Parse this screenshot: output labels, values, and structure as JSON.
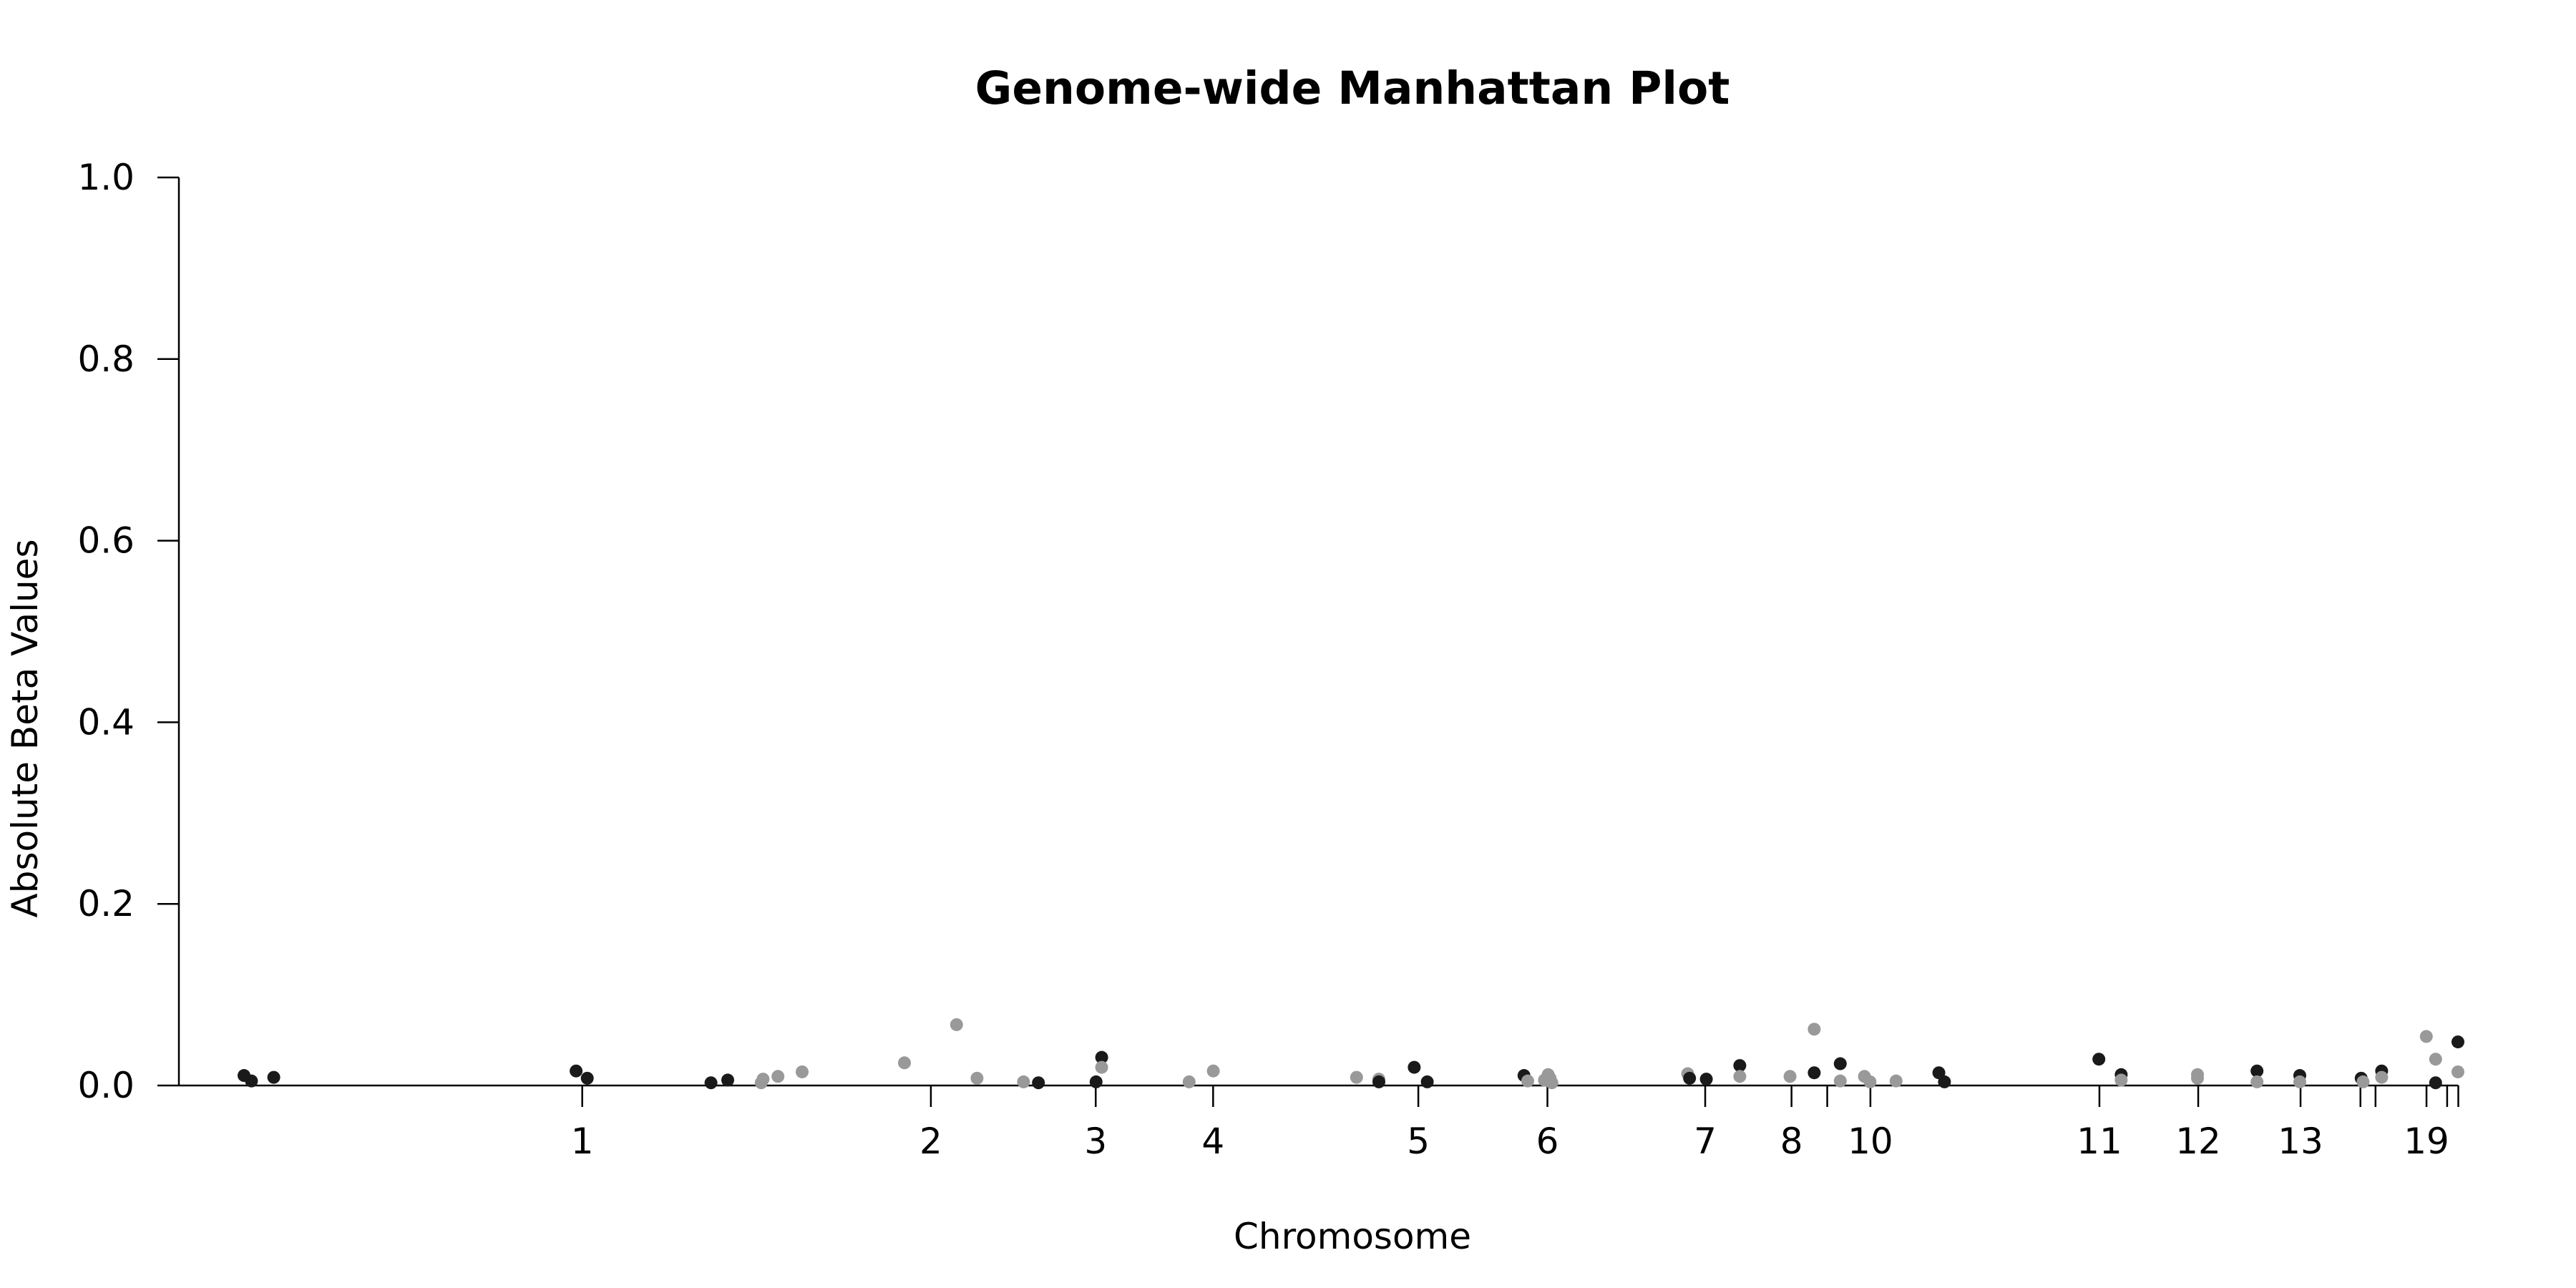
{
  "chart_data": {
    "type": "scatter",
    "title": "Genome-wide Manhattan Plot",
    "xlabel": "Chromosome",
    "ylabel": "Absolute Beta Values",
    "ylim": [
      0,
      1.0
    ],
    "grid": false,
    "y_ticks": [
      "0.0",
      "0.2",
      "0.4",
      "0.6",
      "0.8",
      "1.0"
    ],
    "x_ticks": [
      {
        "label": "1",
        "pos": 0.2168
      },
      {
        "label": "2",
        "pos": 0.4042
      },
      {
        "label": "3",
        "pos": 0.4928
      },
      {
        "label": "4",
        "pos": 0.5559
      },
      {
        "label": "5",
        "pos": 0.6662
      },
      {
        "label": "6",
        "pos": 0.7356
      },
      {
        "label": "7",
        "pos": 0.8204
      },
      {
        "label": "8",
        "pos": 0.8668
      },
      {
        "label": "",
        "pos": 0.886
      },
      {
        "label": "10",
        "pos": 0.9092
      },
      {
        "label": "11",
        "pos": 1.0323
      },
      {
        "label": "12",
        "pos": 1.0854
      },
      {
        "label": "13",
        "pos": 1.1404
      },
      {
        "label": "",
        "pos": 1.1726
      },
      {
        "label": "",
        "pos": 1.1807
      },
      {
        "label": "19",
        "pos": 1.2081
      },
      {
        "label": "",
        "pos": 1.2192
      },
      {
        "label": "",
        "pos": 1.2252
      }
    ],
    "colors": {
      "dark": "#1a1a1a",
      "light": "#999999"
    },
    "points": [
      {
        "x": 0.035,
        "y": 0.011,
        "c": "dark"
      },
      {
        "x": 0.039,
        "y": 0.005,
        "c": "dark"
      },
      {
        "x": 0.051,
        "y": 0.009,
        "c": "dark"
      },
      {
        "x": 0.2135,
        "y": 0.016,
        "c": "dark"
      },
      {
        "x": 0.2195,
        "y": 0.008,
        "c": "dark"
      },
      {
        "x": 0.286,
        "y": 0.003,
        "c": "dark"
      },
      {
        "x": 0.295,
        "y": 0.006,
        "c": "dark"
      },
      {
        "x": 0.313,
        "y": 0.003,
        "c": "light"
      },
      {
        "x": 0.314,
        "y": 0.007,
        "c": "light"
      },
      {
        "x": 0.322,
        "y": 0.01,
        "c": "light"
      },
      {
        "x": 0.335,
        "y": 0.015,
        "c": "light"
      },
      {
        "x": 0.39,
        "y": 0.025,
        "c": "light"
      },
      {
        "x": 0.418,
        "y": 0.067,
        "c": "light"
      },
      {
        "x": 0.429,
        "y": 0.008,
        "c": "light"
      },
      {
        "x": 0.454,
        "y": 0.004,
        "c": "light"
      },
      {
        "x": 0.462,
        "y": 0.003,
        "c": "dark"
      },
      {
        "x": 0.493,
        "y": 0.004,
        "c": "dark"
      },
      {
        "x": 0.496,
        "y": 0.031,
        "c": "dark"
      },
      {
        "x": 0.496,
        "y": 0.02,
        "c": "light"
      },
      {
        "x": 0.543,
        "y": 0.004,
        "c": "light"
      },
      {
        "x": 0.556,
        "y": 0.016,
        "c": "light"
      },
      {
        "x": 0.633,
        "y": 0.009,
        "c": "light"
      },
      {
        "x": 0.645,
        "y": 0.007,
        "c": "light"
      },
      {
        "x": 0.645,
        "y": 0.004,
        "c": "dark"
      },
      {
        "x": 0.664,
        "y": 0.02,
        "c": "dark"
      },
      {
        "x": 0.671,
        "y": 0.004,
        "c": "dark"
      },
      {
        "x": 0.723,
        "y": 0.011,
        "c": "dark"
      },
      {
        "x": 0.725,
        "y": 0.005,
        "c": "light"
      },
      {
        "x": 0.734,
        "y": 0.006,
        "c": "light"
      },
      {
        "x": 0.736,
        "y": 0.012,
        "c": "light"
      },
      {
        "x": 0.737,
        "y": 0.008,
        "c": "light"
      },
      {
        "x": 0.738,
        "y": 0.003,
        "c": "light"
      },
      {
        "x": 0.811,
        "y": 0.013,
        "c": "light"
      },
      {
        "x": 0.812,
        "y": 0.008,
        "c": "dark"
      },
      {
        "x": 0.821,
        "y": 0.007,
        "c": "dark"
      },
      {
        "x": 0.839,
        "y": 0.022,
        "c": "dark"
      },
      {
        "x": 0.839,
        "y": 0.01,
        "c": "light"
      },
      {
        "x": 0.866,
        "y": 0.01,
        "c": "light"
      },
      {
        "x": 0.879,
        "y": 0.062,
        "c": "light"
      },
      {
        "x": 0.879,
        "y": 0.014,
        "c": "dark"
      },
      {
        "x": 0.893,
        "y": 0.024,
        "c": "dark"
      },
      {
        "x": 0.893,
        "y": 0.005,
        "c": "light"
      },
      {
        "x": 0.906,
        "y": 0.01,
        "c": "light"
      },
      {
        "x": 0.909,
        "y": 0.004,
        "c": "light"
      },
      {
        "x": 0.923,
        "y": 0.005,
        "c": "light"
      },
      {
        "x": 0.946,
        "y": 0.014,
        "c": "dark"
      },
      {
        "x": 0.949,
        "y": 0.004,
        "c": "dark"
      },
      {
        "x": 1.032,
        "y": 0.029,
        "c": "dark"
      },
      {
        "x": 1.044,
        "y": 0.012,
        "c": "dark"
      },
      {
        "x": 1.044,
        "y": 0.006,
        "c": "light"
      },
      {
        "x": 1.085,
        "y": 0.012,
        "c": "light"
      },
      {
        "x": 1.085,
        "y": 0.008,
        "c": "light"
      },
      {
        "x": 1.117,
        "y": 0.016,
        "c": "dark"
      },
      {
        "x": 1.117,
        "y": 0.004,
        "c": "light"
      },
      {
        "x": 1.14,
        "y": 0.011,
        "c": "dark"
      },
      {
        "x": 1.14,
        "y": 0.004,
        "c": "light"
      },
      {
        "x": 1.173,
        "y": 0.008,
        "c": "dark"
      },
      {
        "x": 1.174,
        "y": 0.004,
        "c": "light"
      },
      {
        "x": 1.184,
        "y": 0.016,
        "c": "dark"
      },
      {
        "x": 1.184,
        "y": 0.009,
        "c": "light"
      },
      {
        "x": 1.208,
        "y": 0.054,
        "c": "light"
      },
      {
        "x": 1.213,
        "y": 0.029,
        "c": "light"
      },
      {
        "x": 1.213,
        "y": 0.003,
        "c": "dark"
      },
      {
        "x": 1.225,
        "y": 0.048,
        "c": "dark"
      },
      {
        "x": 1.225,
        "y": 0.015,
        "c": "light"
      }
    ]
  }
}
